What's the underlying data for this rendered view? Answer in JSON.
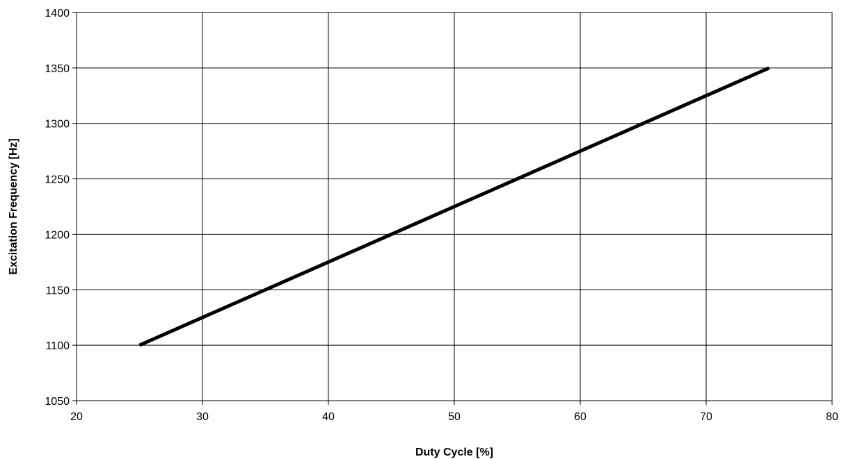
{
  "chart_data": {
    "type": "line",
    "title": "",
    "xlabel": "Duty Cycle [%]",
    "ylabel": "Excitation Frequency [Hz]",
    "xlim": [
      20,
      80
    ],
    "ylim": [
      1050,
      1400
    ],
    "x_ticks": [
      20,
      30,
      40,
      50,
      60,
      70,
      80
    ],
    "y_ticks": [
      1050,
      1100,
      1150,
      1200,
      1250,
      1300,
      1350,
      1400
    ],
    "grid": true,
    "legend": "none",
    "line_color": "#000000",
    "series": [
      {
        "x": [
          25,
          75
        ],
        "y": [
          1100,
          1350
        ]
      }
    ]
  }
}
